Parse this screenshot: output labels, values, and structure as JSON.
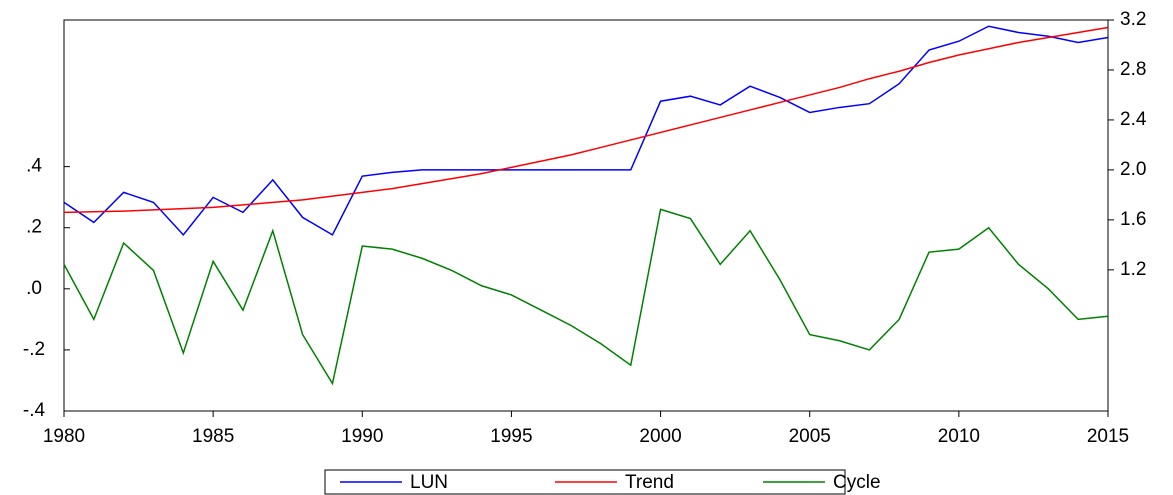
{
  "chart_data": {
    "type": "line",
    "x": [
      1980,
      1981,
      1982,
      1983,
      1984,
      1985,
      1986,
      1987,
      1988,
      1989,
      1990,
      1991,
      1992,
      1993,
      1994,
      1995,
      1996,
      1997,
      1998,
      1999,
      2000,
      2001,
      2002,
      2003,
      2004,
      2005,
      2006,
      2007,
      2008,
      2009,
      2010,
      2011,
      2012,
      2013,
      2014,
      2015
    ],
    "xlim": [
      1980,
      2015
    ],
    "xticks": [
      1980,
      1985,
      1990,
      1995,
      2000,
      2005,
      2010,
      2015
    ],
    "ylim": [
      -0.4,
      0.88
    ],
    "yticks": [
      {
        "value": -0.4,
        "label": "-.4"
      },
      {
        "value": -0.2,
        "label": "-.2"
      },
      {
        "value": 0,
        "label": ".0"
      },
      {
        "value": 0.2,
        "label": ".2"
      },
      {
        "value": 0.4,
        "label": ".4"
      }
    ],
    "y2lim": [
      0.07,
      3.2
    ],
    "y2ticks": [
      1.2,
      1.6,
      {
        "value": 2,
        "label": "2.0"
      },
      2.4,
      2.8,
      3.2
    ],
    "legend": "bottom",
    "series": [
      {
        "name": "LUN",
        "color": "#0000ff",
        "axis": "y2",
        "values": [
          1.74,
          1.58,
          1.82,
          1.74,
          1.48,
          1.78,
          1.66,
          1.92,
          1.62,
          1.48,
          1.95,
          1.98,
          2.0,
          2.0,
          2.0,
          2.0,
          2.0,
          2.0,
          2.0,
          2.0,
          2.55,
          2.59,
          2.52,
          2.67,
          2.58,
          2.46,
          2.5,
          2.53,
          2.69,
          2.96,
          3.03,
          3.15,
          3.1,
          3.07,
          3.02,
          3.06
        ]
      },
      {
        "name": "Trend",
        "color": "#ff0000",
        "axis": "y2",
        "values": [
          1.66,
          1.665,
          1.67,
          1.68,
          1.69,
          1.7,
          1.72,
          1.74,
          1.76,
          1.79,
          1.82,
          1.85,
          1.89,
          1.93,
          1.97,
          2.02,
          2.07,
          2.12,
          2.18,
          2.24,
          2.3,
          2.36,
          2.42,
          2.48,
          2.54,
          2.6,
          2.66,
          2.73,
          2.79,
          2.86,
          2.92,
          2.97,
          3.02,
          3.06,
          3.1,
          3.14
        ]
      },
      {
        "name": "Cycle",
        "color": "#008000",
        "values": [
          0.08,
          -0.1,
          0.15,
          0.06,
          -0.21,
          0.09,
          -0.07,
          0.19,
          -0.15,
          -0.31,
          0.14,
          0.13,
          0.1,
          0.06,
          0.01,
          -0.02,
          -0.07,
          -0.12,
          -0.18,
          -0.25,
          0.26,
          0.23,
          0.08,
          0.19,
          0.03,
          -0.15,
          -0.17,
          -0.2,
          -0.1,
          0.12,
          0.13,
          0.2,
          0.08,
          0.0,
          -0.1,
          -0.09
        ]
      }
    ]
  }
}
